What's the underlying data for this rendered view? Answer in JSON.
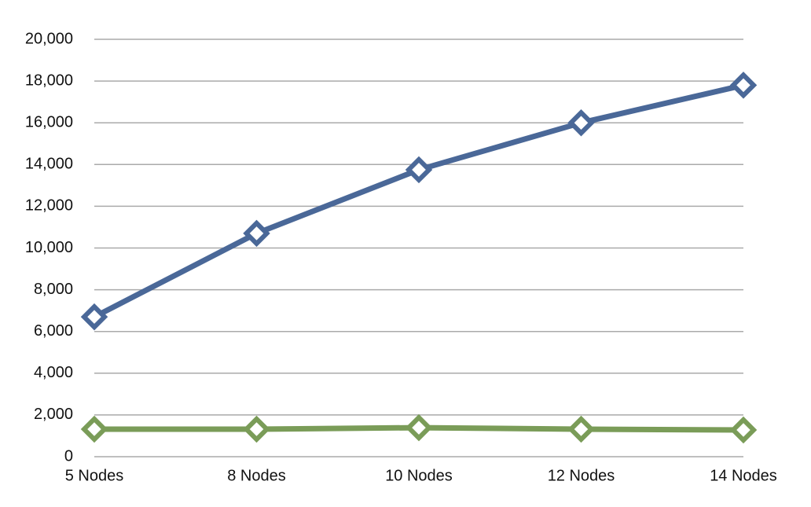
{
  "chart_data": {
    "type": "line",
    "categories": [
      "5 Nodes",
      "8 Nodes",
      "10 Nodes",
      "12 Nodes",
      "14 Nodes"
    ],
    "series": [
      {
        "color": "#4a6898",
        "values": [
          6700,
          10700,
          13750,
          16000,
          17800
        ]
      },
      {
        "color": "#7a9c58",
        "values": [
          1320,
          1320,
          1390,
          1320,
          1280
        ]
      }
    ],
    "ylim": [
      0,
      20000
    ],
    "yticks": [
      0,
      {
        "value": 2000,
        "label": "2,000"
      },
      {
        "value": 4000,
        "label": "4,000"
      },
      {
        "value": 6000,
        "label": "6,000"
      },
      {
        "value": 8000,
        "label": "8,000"
      },
      {
        "value": 10000,
        "label": "10,000"
      },
      {
        "value": 12000,
        "label": "12,000"
      },
      {
        "value": 14000,
        "label": "14,000"
      },
      {
        "value": 16000,
        "label": "16,000"
      },
      {
        "value": 18000,
        "label": "18,000"
      },
      {
        "value": 20000,
        "label": "20,000"
      }
    ],
    "grid": true
  }
}
